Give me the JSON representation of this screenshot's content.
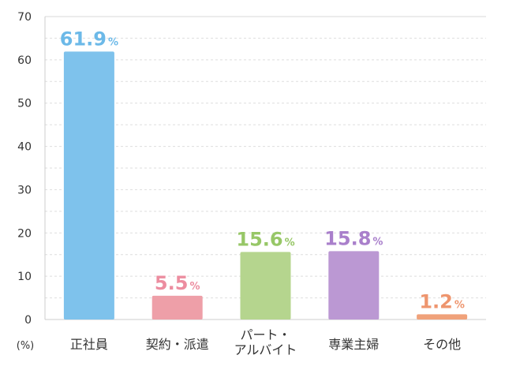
{
  "chart_data": {
    "type": "bar",
    "title": "",
    "xlabel": "",
    "ylabel": "",
    "unit_label": "(%)",
    "ylim": [
      0,
      70
    ],
    "yticks": [
      0,
      10,
      20,
      30,
      40,
      50,
      60,
      70
    ],
    "grid": true,
    "legend": "none",
    "categories": [
      [
        "正社員"
      ],
      [
        "契約・派遣"
      ],
      [
        "パート・",
        "アルバイト"
      ],
      [
        "専業主婦"
      ],
      [
        "その他"
      ]
    ],
    "values": [
      61.9,
      5.5,
      15.6,
      15.8,
      1.2
    ],
    "value_labels": [
      "61.9",
      "5.5",
      "15.6",
      "15.8",
      "1.2"
    ],
    "value_suffix": "%",
    "bar_colors": [
      "#7ec2ec",
      "#ee9fa8",
      "#b5d58e",
      "#bb98d3",
      "#f0a27a"
    ],
    "label_colors": [
      "#6cb9e8",
      "#ec8da0",
      "#97c767",
      "#a97fcb",
      "#ee956e"
    ]
  }
}
